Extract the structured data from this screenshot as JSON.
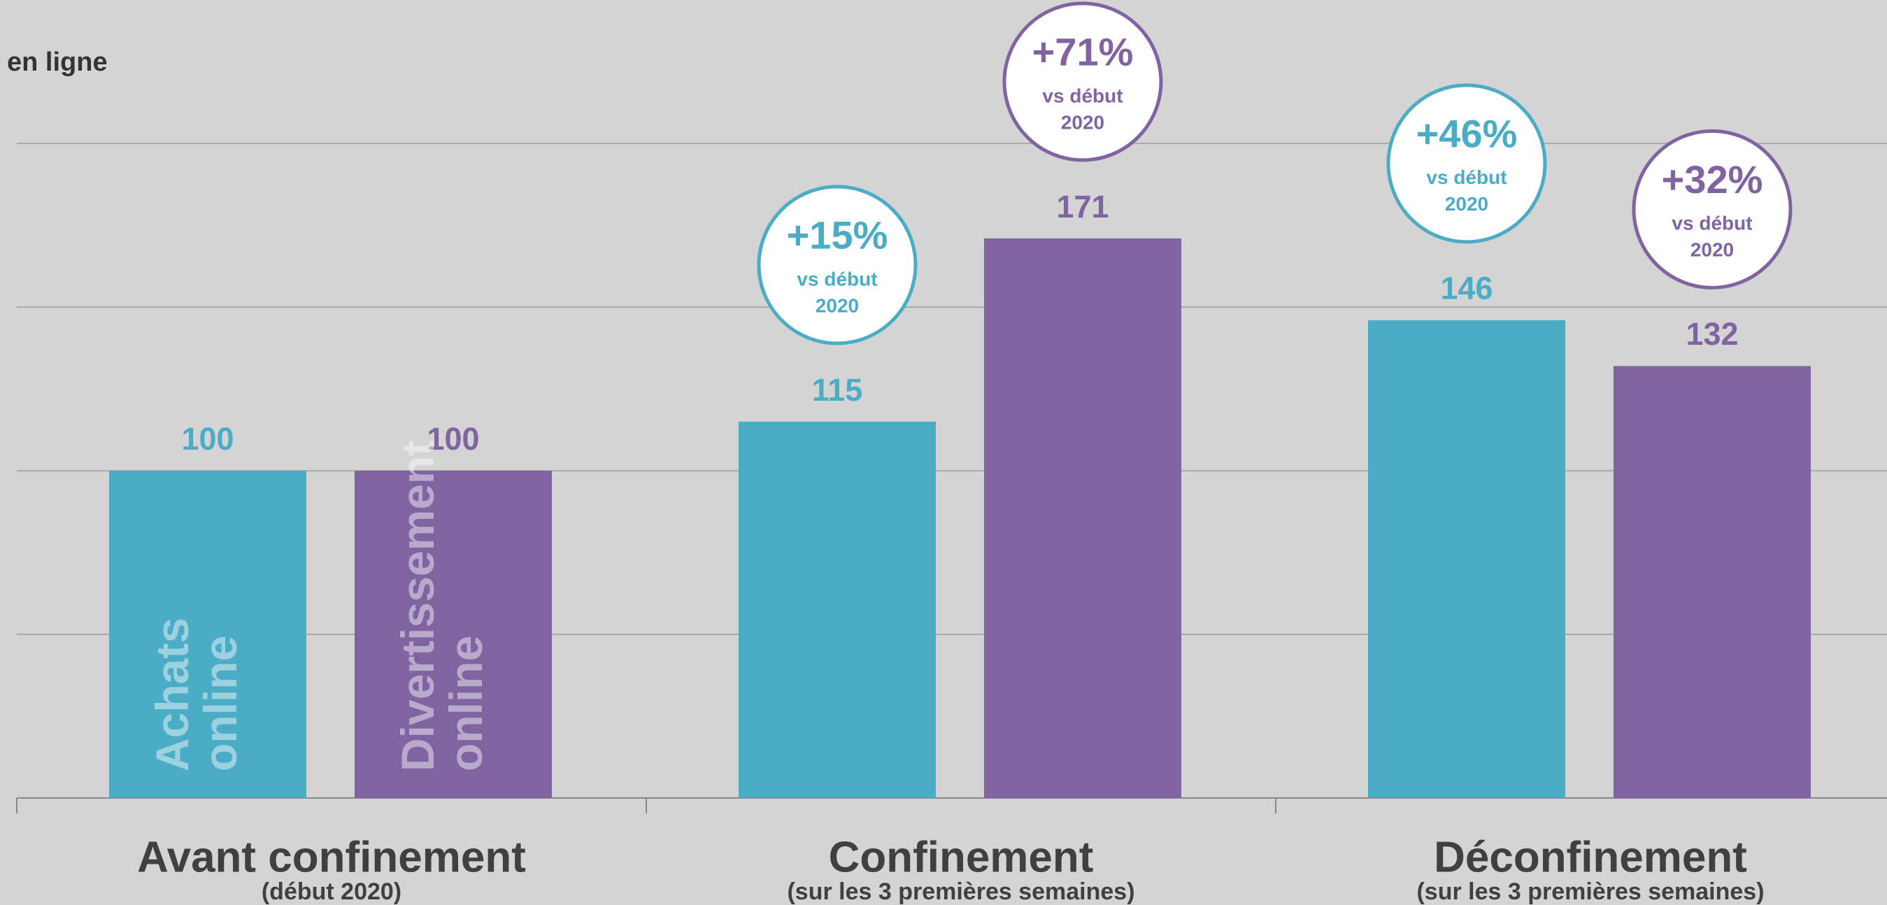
{
  "chart_data": {
    "type": "bar",
    "axis_label": "en ligne",
    "categories": [
      "Avant confinement",
      "Confinement",
      "Déconfinement"
    ],
    "category_subtitles": [
      "(début 2020)",
      "(sur les 3 premières semaines)",
      "(sur les 3 premières semaines)"
    ],
    "series": [
      {
        "name": "Achats online",
        "color": "#4bacc6",
        "values": [
          100,
          115,
          146
        ],
        "annotations": [
          null,
          {
            "text": "+15%",
            "note": [
              "vs début",
              "2020"
            ]
          },
          {
            "text": "+46%",
            "note": [
              "vs début",
              "2020"
            ]
          }
        ]
      },
      {
        "name": "Divertissement online",
        "color": "#8064a2",
        "values": [
          100,
          171,
          132
        ],
        "annotations": [
          null,
          {
            "text": "+71%",
            "note": [
              "vs début",
              "2020"
            ]
          },
          {
            "text": "+32%",
            "note": [
              "vs début",
              "2020"
            ]
          }
        ]
      }
    ],
    "ylim": [
      0,
      240
    ],
    "yticks": [
      0,
      50,
      100,
      150,
      200
    ],
    "grid": true
  }
}
